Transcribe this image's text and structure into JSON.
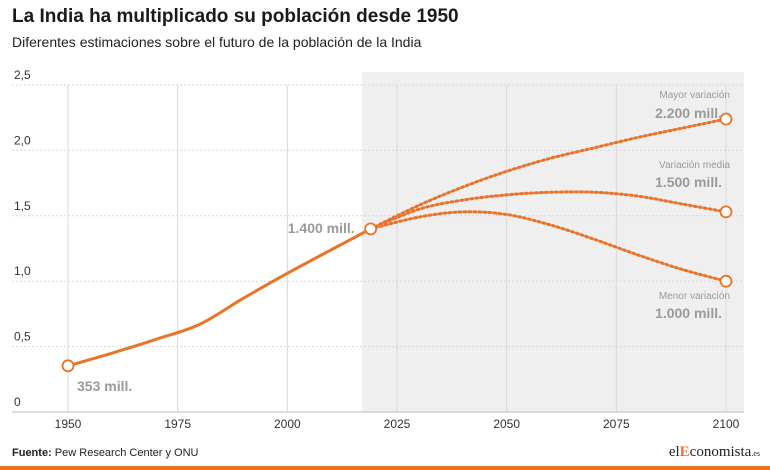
{
  "header": {
    "title": "La India ha multiplicado su población desde 1950",
    "subtitle": "Diferentes estimaciones sobre el futuro de la población de la India"
  },
  "footer": {
    "source_label": "Fuente:",
    "source_text": "Pew Research Center y ONU",
    "logo_prefix": "el",
    "logo_mid": "E",
    "logo_suffix": "conomista",
    "logo_domain": ".es"
  },
  "colors": {
    "line": "#e8742a",
    "projection_band": "#efefef",
    "grid": "#d8d8d8",
    "label": "#9a9a9a"
  },
  "chart_data": {
    "type": "line",
    "ylim": [
      0,
      2.5
    ],
    "xlim": [
      1950,
      2100
    ],
    "y_ticks": [
      "0",
      "0,5",
      "1,0",
      "1,5",
      "2,0",
      "2,5"
    ],
    "y_tick_values": [
      0,
      0.5,
      1.0,
      1.5,
      2.0,
      2.5
    ],
    "x_ticks": [
      1950,
      1975,
      2000,
      2025,
      2050,
      2075,
      2100
    ],
    "projection_start": 2017,
    "historical": {
      "x": [
        1950,
        1960,
        1970,
        1980,
        1990,
        2000,
        2010,
        2019
      ],
      "y": [
        0.353,
        0.45,
        0.555,
        0.67,
        0.87,
        1.06,
        1.24,
        1.4
      ]
    },
    "series": [
      {
        "name": "Mayor variación",
        "value_label": "2.200 mill.",
        "x": [
          2019,
          2030,
          2040,
          2050,
          2060,
          2070,
          2080,
          2090,
          2100
        ],
        "y": [
          1.4,
          1.58,
          1.72,
          1.84,
          1.94,
          2.02,
          2.1,
          2.17,
          2.24
        ]
      },
      {
        "name": "Variación media",
        "value_label": "1.500 mill.",
        "x": [
          2019,
          2030,
          2040,
          2050,
          2060,
          2070,
          2080,
          2090,
          2100
        ],
        "y": [
          1.4,
          1.55,
          1.62,
          1.66,
          1.68,
          1.68,
          1.65,
          1.59,
          1.53
        ]
      },
      {
        "name": "Menor variación",
        "value_label": "1.000 mill.",
        "x": [
          2019,
          2030,
          2040,
          2050,
          2060,
          2070,
          2080,
          2090,
          2100
        ],
        "y": [
          1.4,
          1.49,
          1.53,
          1.51,
          1.43,
          1.32,
          1.2,
          1.09,
          1.0
        ]
      }
    ],
    "annotations": [
      {
        "text": "353 mill.",
        "x": 1950,
        "y": 0.353
      },
      {
        "text": "1.400 mill.",
        "x": 2019,
        "y": 1.4
      }
    ]
  }
}
